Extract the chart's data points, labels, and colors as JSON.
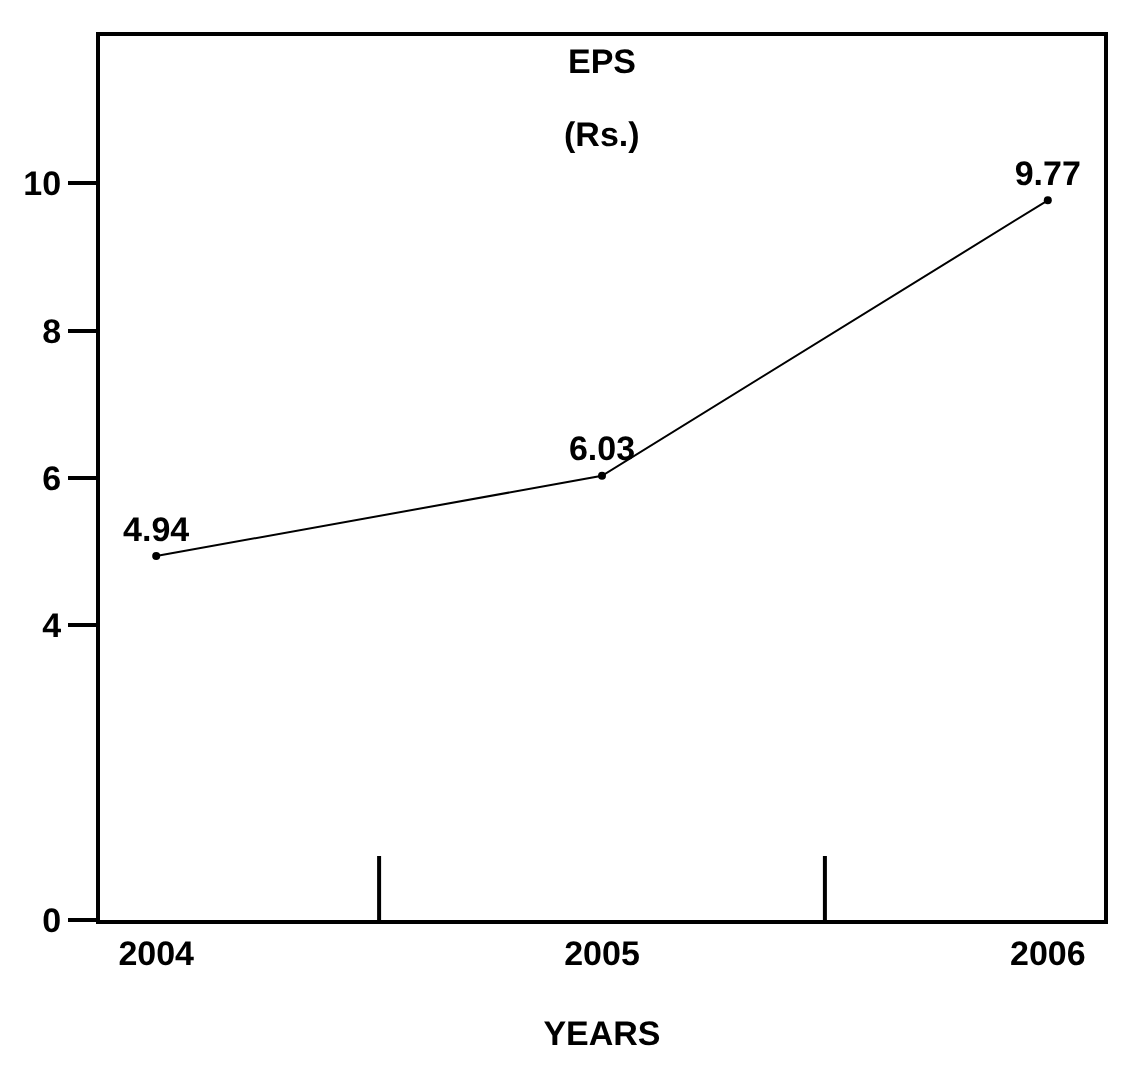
{
  "chart_data": {
    "type": "line",
    "title": "EPS",
    "subtitle": "(Rs.)",
    "xlabel": "YEARS",
    "categories": [
      "2004",
      "2005",
      "2006"
    ],
    "series": [
      {
        "color": "#000000",
        "values": [
          4.94,
          6.03,
          9.77
        ]
      }
    ],
    "ylim": [
      0,
      12
    ],
    "yticks": [
      0,
      4,
      6,
      8,
      10
    ],
    "data_labels": true,
    "marker": "circle",
    "line_style": "solid",
    "grid": false
  }
}
